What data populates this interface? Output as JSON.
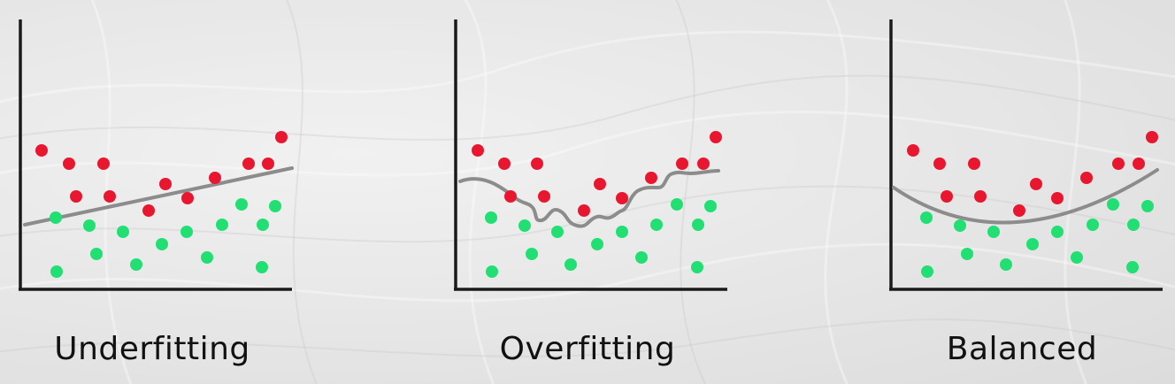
{
  "colors": {
    "background": "#e4e4e4",
    "axis": "#1a1a1a",
    "curve": "#8c8c8c",
    "red_point": "#e8172f",
    "green_point": "#22df74"
  },
  "panels": [
    {
      "caption": "Underfitting",
      "fit": "linear",
      "red_points": [
        [
          47,
          170
        ],
        [
          78,
          185
        ],
        [
          117,
          185
        ],
        [
          86,
          222
        ],
        [
          124,
          222
        ],
        [
          168,
          238
        ],
        [
          187,
          208
        ],
        [
          212,
          224
        ],
        [
          243,
          201
        ],
        [
          281,
          185
        ],
        [
          303,
          185
        ],
        [
          318,
          155
        ]
      ],
      "green_points": [
        [
          63,
          246
        ],
        [
          101,
          255
        ],
        [
          139,
          262
        ],
        [
          183,
          276
        ],
        [
          211,
          262
        ],
        [
          251,
          254
        ],
        [
          273,
          231
        ],
        [
          297,
          254
        ],
        [
          311,
          233
        ],
        [
          109,
          287
        ],
        [
          154,
          299
        ],
        [
          234,
          291
        ],
        [
          64,
          307
        ],
        [
          296,
          302
        ]
      ]
    },
    {
      "caption": "Overfitting",
      "fit": "wiggly",
      "red_points": [
        [
          540,
          170
        ],
        [
          570,
          185
        ],
        [
          607,
          185
        ],
        [
          577,
          222
        ],
        [
          615,
          222
        ],
        [
          660,
          238
        ],
        [
          678,
          208
        ],
        [
          703,
          224
        ],
        [
          736,
          201
        ],
        [
          771,
          185
        ],
        [
          795,
          185
        ],
        [
          809,
          155
        ]
      ],
      "green_points": [
        [
          555,
          246
        ],
        [
          593,
          255
        ],
        [
          630,
          262
        ],
        [
          675,
          276
        ],
        [
          703,
          262
        ],
        [
          742,
          254
        ],
        [
          765,
          231
        ],
        [
          789,
          254
        ],
        [
          803,
          233
        ],
        [
          601,
          287
        ],
        [
          645,
          299
        ],
        [
          725,
          291
        ],
        [
          556,
          307
        ],
        [
          788,
          302
        ]
      ]
    },
    {
      "caption": "Balanced",
      "fit": "quadratic",
      "red_points": [
        [
          1032,
          170
        ],
        [
          1062,
          185
        ],
        [
          1101,
          185
        ],
        [
          1070,
          222
        ],
        [
          1108,
          222
        ],
        [
          1152,
          238
        ],
        [
          1171,
          208
        ],
        [
          1195,
          224
        ],
        [
          1228,
          201
        ],
        [
          1264,
          185
        ],
        [
          1287,
          185
        ],
        [
          1302,
          155
        ]
      ],
      "green_points": [
        [
          1047,
          246
        ],
        [
          1085,
          255
        ],
        [
          1123,
          262
        ],
        [
          1167,
          276
        ],
        [
          1195,
          262
        ],
        [
          1235,
          254
        ],
        [
          1258,
          231
        ],
        [
          1281,
          254
        ],
        [
          1297,
          233
        ],
        [
          1093,
          287
        ],
        [
          1137,
          299
        ],
        [
          1217,
          291
        ],
        [
          1048,
          307
        ],
        [
          1280,
          302
        ]
      ]
    }
  ]
}
